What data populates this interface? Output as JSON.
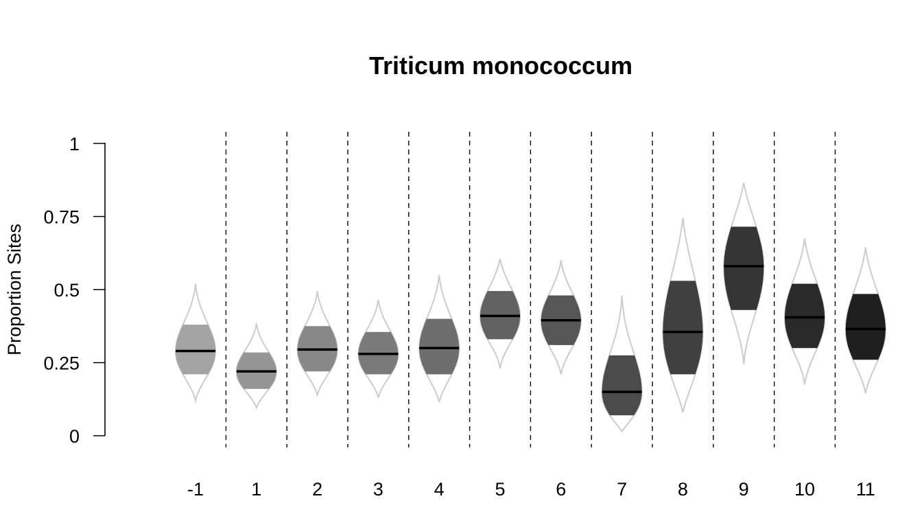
{
  "chart_data": {
    "type": "violin",
    "title": "Triticum monococcum",
    "xlabel": "",
    "ylabel": "Proportion Sites",
    "ylim": [
      0,
      1
    ],
    "yticks": [
      0,
      0.25,
      0.5,
      0.75,
      1
    ],
    "ytick_labels": [
      "0",
      "0.25",
      "0.5",
      "0.75",
      "1"
    ],
    "categories": [
      "-1",
      "1",
      "2",
      "3",
      "4",
      "5",
      "6",
      "7",
      "8",
      "9",
      "10",
      "11"
    ],
    "median": [
      0.29,
      0.22,
      0.295,
      0.28,
      0.3,
      0.41,
      0.395,
      0.15,
      0.355,
      0.58,
      0.405,
      0.365
    ],
    "q1": [
      0.21,
      0.16,
      0.22,
      0.21,
      0.21,
      0.33,
      0.31,
      0.07,
      0.21,
      0.43,
      0.3,
      0.26
    ],
    "q3": [
      0.38,
      0.285,
      0.375,
      0.355,
      0.4,
      0.495,
      0.48,
      0.275,
      0.53,
      0.715,
      0.52,
      0.485
    ],
    "min": [
      0.12,
      0.095,
      0.14,
      0.13,
      0.115,
      0.23,
      0.21,
      0.015,
      0.08,
      0.245,
      0.175,
      0.145
    ],
    "max": [
      0.52,
      0.385,
      0.495,
      0.465,
      0.55,
      0.605,
      0.6,
      0.48,
      0.745,
      0.865,
      0.675,
      0.645
    ],
    "fill_colors": [
      "#a3a3a3",
      "#959595",
      "#888888",
      "#7b7b7b",
      "#6e6e6e",
      "#626262",
      "#565656",
      "#4b4b4b",
      "#404040",
      "#353535",
      "#2a2a2a",
      "#1f1f1f"
    ],
    "outline_color": "#cccccc",
    "median_color": "#000000",
    "separator_style": "dashed",
    "grid": false,
    "legend": "none"
  }
}
